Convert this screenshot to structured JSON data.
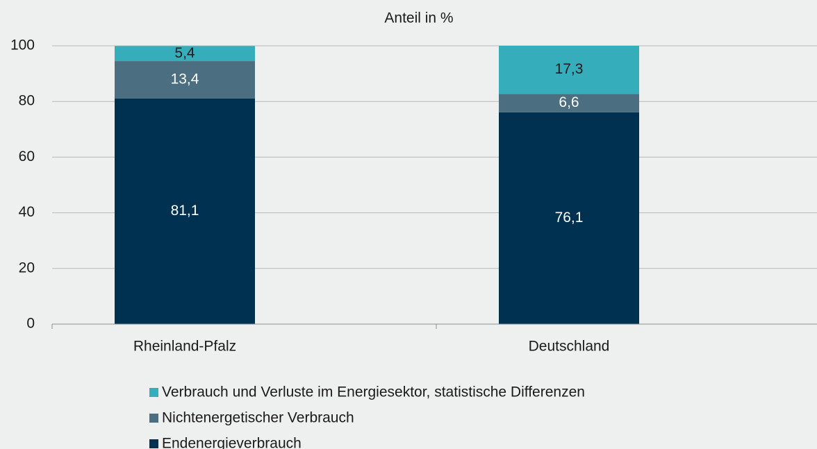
{
  "chart_data": {
    "type": "stacked_bar",
    "title": "Anteil in %",
    "categories": [
      "Rheinland-Pfalz",
      "Deutschland"
    ],
    "series": [
      {
        "name": "Endenergieverbrauch",
        "color": "#003150",
        "values": [
          81.1,
          76.1
        ],
        "value_labels": [
          "81,1",
          "76,1"
        ]
      },
      {
        "name": "Nichtenergetischer Verbrauch",
        "color": "#4b6e80",
        "values": [
          13.4,
          6.6
        ],
        "value_labels": [
          "13,4",
          "6,6"
        ]
      },
      {
        "name": "Verbrauch und Verluste im Energiesektor, statistische Differenzen",
        "color": "#35adba",
        "values": [
          5.4,
          17.3
        ],
        "value_labels": [
          "5,4",
          "17,3"
        ]
      }
    ],
    "ylim": [
      0,
      100
    ],
    "yticks": [
      0,
      20,
      40,
      60,
      80,
      100
    ],
    "grid": true
  }
}
